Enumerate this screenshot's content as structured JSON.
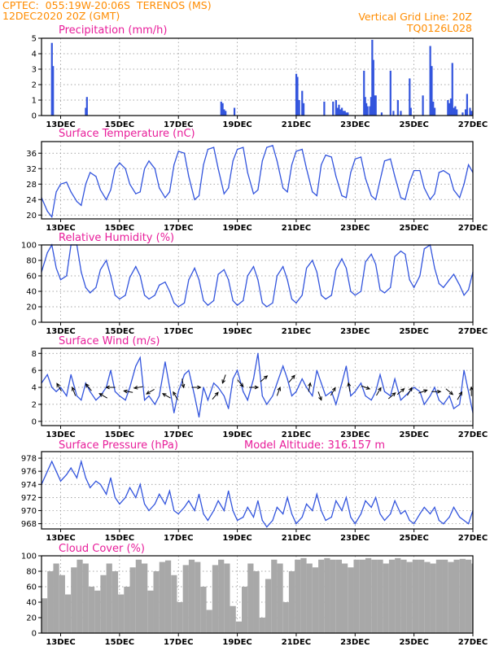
{
  "header": {
    "line1_left": "CPTEC:  055:19W-20:06S  TERENOS (MS)",
    "line2_left": "12DEC2020 20Z (GMT)",
    "line2_right": "Vertical Grid Line: 20Z",
    "line3_right": "TQ0126L028"
  },
  "colors": {
    "header": "#ff8c00",
    "panel_title": "#e81d9a",
    "line": "#3355dd",
    "cloud": "#a8a8a8",
    "arrow": "#000000"
  },
  "x_axis": {
    "tick_labels": [
      "13DEC",
      "15DEC",
      "17DEC",
      "19DEC",
      "21DEC",
      "23DEC",
      "25DEC",
      "27DEC"
    ],
    "tick_days": [
      13,
      15,
      17,
      19,
      21,
      23,
      25,
      27
    ],
    "range_days": [
      12.35,
      27.0
    ]
  },
  "chart_data": [
    {
      "type": "bar",
      "title": "Precipitation (mm/h)",
      "ylim": [
        0,
        5
      ],
      "yticks": [
        0,
        1,
        2,
        3,
        4,
        5
      ],
      "grid": true,
      "x": [
        12.7,
        12.74,
        13.85,
        13.89,
        18.45,
        18.5,
        18.55,
        18.6,
        18.9,
        21.0,
        21.04,
        21.1,
        21.2,
        21.25,
        21.95,
        22.25,
        22.35,
        22.4,
        22.45,
        22.5,
        22.55,
        22.6,
        22.65,
        22.7,
        22.75,
        23.3,
        23.34,
        23.38,
        23.42,
        23.5,
        23.54,
        23.58,
        23.62,
        23.66,
        23.7,
        23.9,
        24.2,
        24.3,
        24.45,
        24.55,
        24.85,
        24.89,
        25.3,
        25.55,
        25.6,
        25.65,
        25.7,
        26.15,
        26.2,
        26.25,
        26.3,
        26.35,
        26.4,
        26.45,
        26.65,
        26.75,
        26.8,
        26.9,
        26.95
      ],
      "values": [
        4.7,
        3.2,
        0.5,
        1.2,
        0.9,
        0.8,
        0.4,
        0.3,
        0.5,
        2.7,
        2.5,
        1.0,
        1.6,
        0.8,
        0.9,
        0.9,
        1.0,
        0.5,
        0.7,
        0.4,
        0.5,
        0.3,
        0.3,
        0.2,
        0.2,
        2.9,
        1.2,
        0.8,
        0.6,
        0.6,
        1.2,
        4.9,
        3.6,
        1.3,
        1.3,
        0.2,
        2.9,
        0.3,
        1.0,
        0.3,
        2.4,
        0.5,
        1.3,
        4.5,
        3.2,
        0.9,
        0.5,
        1.0,
        0.8,
        1.1,
        3.4,
        0.5,
        0.6,
        0.4,
        0.2,
        0.4,
        1.4,
        0.5,
        0.3
      ]
    },
    {
      "type": "line",
      "title": "Surface Temperature (nC)",
      "ylim": [
        19,
        39
      ],
      "yticks": [
        20,
        24,
        28,
        32,
        36
      ],
      "grid": true,
      "x": [
        12.35,
        12.55,
        12.7,
        12.85,
        13.0,
        13.2,
        13.35,
        13.55,
        13.7,
        13.85,
        14.0,
        14.2,
        14.35,
        14.55,
        14.7,
        14.85,
        15.0,
        15.2,
        15.35,
        15.55,
        15.7,
        15.85,
        16.0,
        16.2,
        16.35,
        16.55,
        16.7,
        16.85,
        17.0,
        17.2,
        17.35,
        17.55,
        17.7,
        17.85,
        18.0,
        18.2,
        18.35,
        18.55,
        18.7,
        18.85,
        19.0,
        19.2,
        19.35,
        19.55,
        19.7,
        19.85,
        20.0,
        20.2,
        20.35,
        20.55,
        20.7,
        20.85,
        21.0,
        21.2,
        21.35,
        21.55,
        21.7,
        21.85,
        22.0,
        22.2,
        22.35,
        22.55,
        22.7,
        22.85,
        23.0,
        23.2,
        23.35,
        23.55,
        23.7,
        23.85,
        24.0,
        24.2,
        24.35,
        24.55,
        24.7,
        24.85,
        25.0,
        25.2,
        25.35,
        25.55,
        25.7,
        25.85,
        26.0,
        26.2,
        26.35,
        26.55,
        26.7,
        26.85,
        27.0
      ],
      "values": [
        24.5,
        21.0,
        19.5,
        26.0,
        28.0,
        28.5,
        26.0,
        23.5,
        22.5,
        28.0,
        31.0,
        30.0,
        26.5,
        24.0,
        26.5,
        32.0,
        33.5,
        32.0,
        28.0,
        25.5,
        26.0,
        32.0,
        34.0,
        32.0,
        27.0,
        24.5,
        26.0,
        33.0,
        36.5,
        36.0,
        30.0,
        24.0,
        25.0,
        33.0,
        37.0,
        37.5,
        32.0,
        25.5,
        27.0,
        34.0,
        37.0,
        37.5,
        31.0,
        25.5,
        26.5,
        34.0,
        37.5,
        38.0,
        34.0,
        27.0,
        26.0,
        33.0,
        36.5,
        37.0,
        32.0,
        26.0,
        25.0,
        33.0,
        35.5,
        35.0,
        30.0,
        25.0,
        24.5,
        31.0,
        34.5,
        35.0,
        29.5,
        25.0,
        24.0,
        29.0,
        34.0,
        34.5,
        30.0,
        24.5,
        24.0,
        28.5,
        31.5,
        31.5,
        27.0,
        24.0,
        25.5,
        31.0,
        31.5,
        30.5,
        26.5,
        24.5,
        28.0,
        33.0,
        31.0
      ]
    },
    {
      "type": "line",
      "title": "Relative Humidity (%)",
      "ylim": [
        0,
        100
      ],
      "yticks": [
        0,
        20,
        40,
        60,
        80,
        100
      ],
      "grid": true,
      "x": [
        12.35,
        12.55,
        12.7,
        12.85,
        13.0,
        13.2,
        13.35,
        13.55,
        13.7,
        13.85,
        14.0,
        14.2,
        14.35,
        14.55,
        14.7,
        14.85,
        15.0,
        15.2,
        15.35,
        15.55,
        15.7,
        15.85,
        16.0,
        16.2,
        16.35,
        16.55,
        16.7,
        16.85,
        17.0,
        17.2,
        17.35,
        17.55,
        17.7,
        17.85,
        18.0,
        18.2,
        18.35,
        18.55,
        18.7,
        18.85,
        19.0,
        19.2,
        19.35,
        19.55,
        19.7,
        19.85,
        20.0,
        20.2,
        20.35,
        20.55,
        20.7,
        20.85,
        21.0,
        21.2,
        21.35,
        21.55,
        21.7,
        21.85,
        22.0,
        22.2,
        22.35,
        22.55,
        22.7,
        22.85,
        23.0,
        23.2,
        23.35,
        23.55,
        23.7,
        23.85,
        24.0,
        24.2,
        24.35,
        24.55,
        24.7,
        24.85,
        25.0,
        25.2,
        25.35,
        25.55,
        25.7,
        25.85,
        26.0,
        26.2,
        26.35,
        26.55,
        26.7,
        26.85,
        27.0
      ],
      "values": [
        65,
        90,
        100,
        70,
        55,
        60,
        100,
        100,
        65,
        45,
        38,
        45,
        68,
        80,
        60,
        35,
        30,
        35,
        58,
        72,
        60,
        35,
        30,
        35,
        48,
        52,
        40,
        25,
        20,
        25,
        55,
        70,
        55,
        28,
        22,
        28,
        62,
        68,
        55,
        28,
        22,
        28,
        60,
        72,
        55,
        25,
        20,
        25,
        60,
        72,
        55,
        30,
        25,
        35,
        70,
        80,
        65,
        35,
        30,
        35,
        68,
        82,
        70,
        40,
        35,
        40,
        78,
        88,
        75,
        42,
        38,
        45,
        85,
        92,
        88,
        55,
        45,
        60,
        95,
        100,
        70,
        50,
        45,
        55,
        62,
        48,
        35,
        42,
        65
      ]
    },
    {
      "type": "line",
      "title": "Surface Wind (m/s)",
      "ylim": [
        -0.5,
        8.6
      ],
      "yticks": [
        0,
        2,
        4,
        6,
        8
      ],
      "grid": true,
      "x": [
        12.35,
        12.55,
        12.7,
        12.85,
        13.0,
        13.2,
        13.35,
        13.55,
        13.7,
        13.85,
        14.0,
        14.2,
        14.35,
        14.55,
        14.7,
        14.85,
        15.0,
        15.2,
        15.35,
        15.55,
        15.7,
        15.85,
        16.0,
        16.2,
        16.35,
        16.55,
        16.7,
        16.85,
        17.0,
        17.2,
        17.35,
        17.55,
        17.7,
        17.85,
        18.0,
        18.2,
        18.35,
        18.55,
        18.7,
        18.85,
        19.0,
        19.2,
        19.35,
        19.55,
        19.7,
        19.85,
        20.0,
        20.2,
        20.35,
        20.55,
        20.7,
        20.85,
        21.0,
        21.2,
        21.35,
        21.55,
        21.7,
        21.85,
        22.0,
        22.2,
        22.35,
        22.55,
        22.7,
        22.85,
        23.0,
        23.2,
        23.35,
        23.55,
        23.7,
        23.85,
        24.0,
        24.2,
        24.35,
        24.55,
        24.7,
        24.85,
        25.0,
        25.2,
        25.35,
        25.55,
        25.7,
        25.85,
        26.0,
        26.2,
        26.35,
        26.55,
        26.7,
        26.85,
        27.0
      ],
      "values": [
        4.5,
        5.5,
        4.0,
        3.5,
        4.0,
        3.0,
        5.5,
        3.0,
        2.5,
        4.5,
        3.5,
        2.5,
        3.0,
        4.0,
        6.0,
        3.5,
        3.0,
        2.5,
        4.0,
        6.5,
        7.5,
        2.5,
        3.0,
        2.0,
        3.0,
        7.0,
        4.0,
        1.0,
        3.5,
        5.5,
        6.0,
        3.0,
        0.5,
        4.0,
        2.5,
        4.5,
        4.0,
        3.0,
        1.5,
        5.0,
        6.0,
        3.5,
        2.5,
        5.0,
        8.0,
        3.0,
        2.0,
        3.0,
        4.5,
        6.5,
        5.0,
        3.0,
        3.5,
        5.0,
        4.0,
        3.0,
        6.0,
        4.5,
        3.0,
        3.5,
        2.0,
        4.5,
        6.5,
        3.0,
        3.5,
        4.5,
        3.0,
        2.5,
        3.5,
        5.5,
        3.5,
        3.0,
        5.0,
        2.5,
        3.0,
        3.5,
        4.0,
        3.5,
        2.0,
        3.0,
        4.0,
        2.5,
        2.0,
        3.0,
        1.5,
        2.0,
        6.0,
        3.5,
        1.0
      ]
    },
    {
      "type": "line",
      "title": "Surface Pressure (hPa)",
      "subtitle": "Model Altitude: 316.157 m",
      "ylim": [
        967.2,
        979.0
      ],
      "yticks": [
        968,
        970,
        972,
        974,
        976,
        978
      ],
      "grid": true,
      "x": [
        12.35,
        12.55,
        12.7,
        12.85,
        13.0,
        13.2,
        13.35,
        13.55,
        13.7,
        13.85,
        14.0,
        14.2,
        14.35,
        14.55,
        14.7,
        14.85,
        15.0,
        15.2,
        15.35,
        15.55,
        15.7,
        15.85,
        16.0,
        16.2,
        16.35,
        16.55,
        16.7,
        16.85,
        17.0,
        17.2,
        17.35,
        17.55,
        17.7,
        17.85,
        18.0,
        18.2,
        18.35,
        18.55,
        18.7,
        18.85,
        19.0,
        19.2,
        19.35,
        19.55,
        19.7,
        19.85,
        20.0,
        20.2,
        20.35,
        20.55,
        20.7,
        20.85,
        21.0,
        21.2,
        21.35,
        21.55,
        21.7,
        21.85,
        22.0,
        22.2,
        22.35,
        22.55,
        22.7,
        22.85,
        23.0,
        23.2,
        23.35,
        23.55,
        23.7,
        23.85,
        24.0,
        24.2,
        24.35,
        24.55,
        24.7,
        24.85,
        25.0,
        25.2,
        25.35,
        25.55,
        25.7,
        25.85,
        26.0,
        26.2,
        26.35,
        26.55,
        26.7,
        26.85,
        27.0
      ],
      "values": [
        974.0,
        976.0,
        977.5,
        976.0,
        974.5,
        975.5,
        976.5,
        975.0,
        977.5,
        975.0,
        973.5,
        974.5,
        974.0,
        972.5,
        975.0,
        972.0,
        971.0,
        972.0,
        973.5,
        972.0,
        974.0,
        971.0,
        970.0,
        971.0,
        972.5,
        971.0,
        973.0,
        970.0,
        969.5,
        970.5,
        971.5,
        970.0,
        972.5,
        969.5,
        968.5,
        970.0,
        971.5,
        970.0,
        973.0,
        970.0,
        968.5,
        969.0,
        970.5,
        969.0,
        971.5,
        968.5,
        967.5,
        968.5,
        970.5,
        969.5,
        972.0,
        969.5,
        968.0,
        969.0,
        971.0,
        970.0,
        972.5,
        970.0,
        968.5,
        969.0,
        971.5,
        970.0,
        972.0,
        969.0,
        968.0,
        969.5,
        971.5,
        970.5,
        972.0,
        969.5,
        968.5,
        969.5,
        971.5,
        969.5,
        970.0,
        968.5,
        968.0,
        969.5,
        970.5,
        969.5,
        970.5,
        968.5,
        968.0,
        969.0,
        970.5,
        969.0,
        968.5,
        968.0,
        970.0
      ]
    },
    {
      "type": "bar",
      "title": "Cloud Cover (%)",
      "ylim": [
        0,
        100
      ],
      "yticks": [
        0,
        20,
        40,
        60,
        80,
        100
      ],
      "grid": true,
      "x": [
        12.35,
        12.55,
        12.75,
        12.95,
        13.15,
        13.35,
        13.55,
        13.75,
        13.95,
        14.15,
        14.35,
        14.55,
        14.75,
        14.95,
        15.15,
        15.35,
        15.55,
        15.75,
        15.95,
        16.15,
        16.35,
        16.55,
        16.75,
        16.95,
        17.15,
        17.35,
        17.55,
        17.75,
        17.95,
        18.15,
        18.35,
        18.55,
        18.75,
        18.95,
        19.15,
        19.35,
        19.55,
        19.75,
        19.95,
        20.15,
        20.35,
        20.55,
        20.75,
        20.95,
        21.15,
        21.35,
        21.55,
        21.75,
        21.95,
        22.15,
        22.35,
        22.55,
        22.75,
        22.95,
        23.15,
        23.35,
        23.55,
        23.75,
        23.95,
        24.15,
        24.35,
        24.55,
        24.75,
        24.95,
        25.15,
        25.35,
        25.55,
        25.75,
        25.95,
        26.15,
        26.35,
        26.55,
        26.75,
        26.95
      ],
      "values": [
        45,
        80,
        90,
        75,
        50,
        85,
        95,
        90,
        60,
        55,
        75,
        90,
        80,
        50,
        60,
        85,
        95,
        90,
        55,
        80,
        92,
        94,
        75,
        40,
        88,
        95,
        92,
        60,
        30,
        88,
        95,
        90,
        35,
        15,
        60,
        90,
        80,
        20,
        70,
        95,
        90,
        40,
        80,
        95,
        97,
        90,
        85,
        95,
        97,
        95,
        95,
        90,
        85,
        95,
        95,
        97,
        95,
        95,
        90,
        95,
        97,
        95,
        92,
        95,
        95,
        92,
        90,
        95,
        95,
        92,
        95,
        96,
        95,
        90
      ]
    }
  ],
  "wind_arrows": {
    "x": [
      12.95,
      13.45,
      13.95,
      14.45,
      14.7,
      15.3,
      15.65,
      16.05,
      16.6,
      16.9,
      17.15,
      17.6,
      18.25,
      18.55,
      19.1,
      19.55,
      19.9,
      20.4,
      20.85,
      21.45,
      21.8,
      22.25,
      22.8,
      23.35,
      23.8,
      24.25,
      24.55,
      24.85,
      25.3,
      25.75,
      26.2,
      26.55,
      26.95
    ],
    "speed": [
      4.0,
      3.5,
      4.0,
      3.0,
      4.0,
      3.5,
      4.0,
      3.5,
      3.0,
      3.0,
      4.5,
      4.0,
      3.0,
      5.0,
      4.5,
      4.0,
      5.0,
      3.5,
      5.0,
      4.0,
      3.0,
      3.5,
      4.0,
      4.0,
      3.5,
      3.0,
      3.5,
      3.5,
      3.5,
      3.5,
      3.5,
      3.0,
      3.5
    ],
    "direction_deg": [
      330,
      340,
      320,
      300,
      270,
      280,
      260,
      240,
      300,
      330,
      170,
      90,
      40,
      200,
      140,
      90,
      50,
      20,
      40,
      10,
      160,
      30,
      350,
      110,
      30,
      50,
      50,
      30,
      70,
      90,
      130,
      30,
      0
    ]
  }
}
